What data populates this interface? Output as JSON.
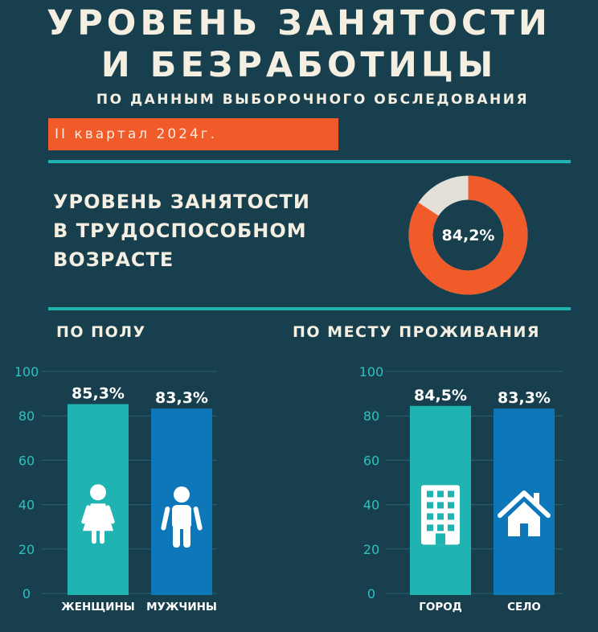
{
  "header": {
    "title_line1": "УРОВЕНЬ ЗАНЯТОСТИ",
    "title_line2": "И БЕЗРАБОТИЦЫ",
    "subtitle": "ПО ДАННЫМ ВЫБОРОЧНОГО ОБСЛЕДОВАНИЯ",
    "quarter": "II квартал 2024г."
  },
  "employment": {
    "label_line1": "УРОВЕНЬ ЗАНЯТОСТИ",
    "label_line2": "В ТРУДОСПОСОБНОМ",
    "label_line3": "ВОЗРАСТЕ",
    "value": 84.2,
    "value_label": "84,2%"
  },
  "sections": {
    "gender": "ПО ПОЛУ",
    "place": "ПО МЕСТУ ПРОЖИВАНИЯ"
  },
  "colors": {
    "background": "#173f4e",
    "accent_orange": "#f15a29",
    "teal": "#1fb3b1",
    "blue": "#0e77b9",
    "donut_rest": "#e3e0d8",
    "axis_text": "#2ec1c0"
  },
  "chart_data": [
    {
      "type": "bar",
      "categories": [
        "ЖЕНЩИНЫ",
        "МУЖЧИНЫ"
      ],
      "values": [
        85.3,
        83.3
      ],
      "value_labels": [
        "85,3%",
        "83,3%"
      ],
      "icons": [
        "female-person-icon",
        "male-person-icon"
      ],
      "bar_colors": [
        "#1fb3b1",
        "#0e77b9"
      ],
      "ylim": [
        0,
        100
      ],
      "yticks": [
        0,
        20,
        40,
        60,
        80,
        100
      ],
      "grid": true
    },
    {
      "type": "bar",
      "categories": [
        "ГОРОД",
        "СЕЛО"
      ],
      "values": [
        84.5,
        83.3
      ],
      "value_labels": [
        "84,5%",
        "83,3%"
      ],
      "icons": [
        "city-building-icon",
        "house-icon"
      ],
      "bar_colors": [
        "#1fb3b1",
        "#0e77b9"
      ],
      "ylim": [
        0,
        100
      ],
      "yticks": [
        0,
        20,
        40,
        60,
        80,
        100
      ],
      "grid": true
    }
  ]
}
